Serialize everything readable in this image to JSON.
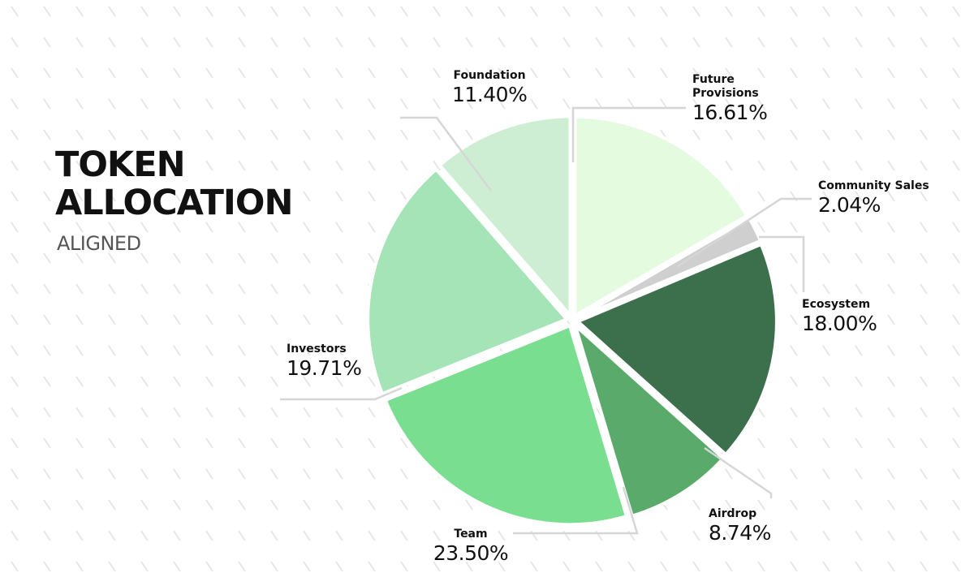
{
  "chart_data": {
    "type": "pie",
    "title": "TOKEN ALLOCATION",
    "subtitle": "ALIGNED",
    "categories": [
      "Future Provisions",
      "Community Sales",
      "Ecosystem",
      "Airdrop",
      "Team",
      "Investors",
      "Foundation"
    ],
    "values": [
      16.61,
      2.04,
      18.0,
      8.74,
      23.5,
      19.71,
      11.4
    ],
    "value_labels": [
      "16.61%",
      "2.04%",
      "18.00%",
      "8.74%",
      "23.50%",
      "19.71%",
      "11.40%"
    ],
    "colors": [
      "#e4fbe0",
      "#cfcfcf",
      "#3c6f4b",
      "#5aab6b",
      "#7ade90",
      "#a4e4b6",
      "#cdeed3"
    ]
  }
}
